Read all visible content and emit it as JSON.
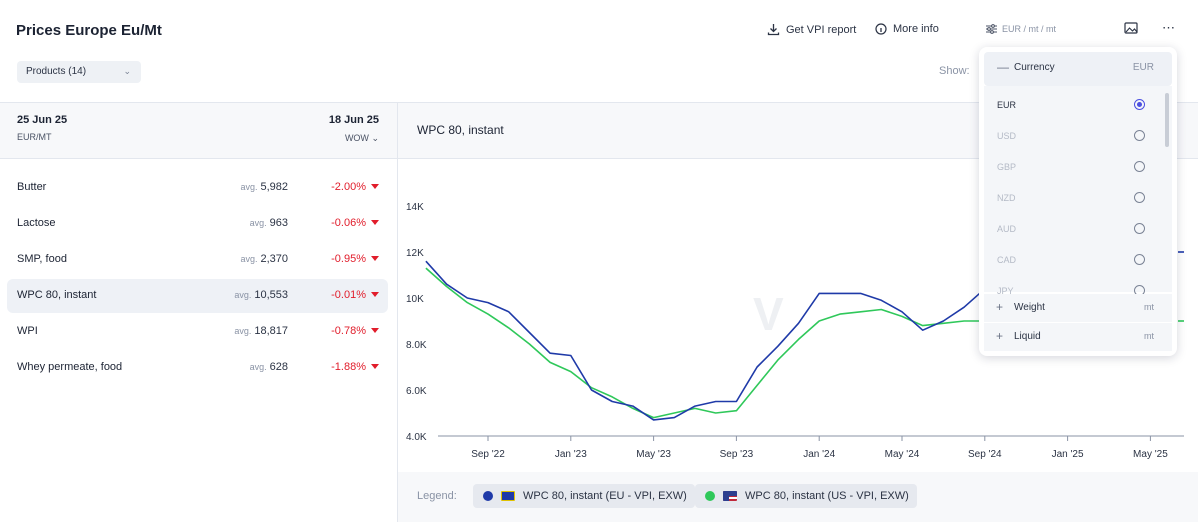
{
  "header": {
    "title": "Prices Europe Eu/Mt",
    "products_label": "Products (14)",
    "get_report_label": "Get VPI report",
    "more_info_label": "More info",
    "currency_selector_label": "EUR / mt / mt",
    "show_label": "Show:"
  },
  "left_panel": {
    "date_current": "25 Jun 25",
    "unit": "EUR/MT",
    "date_compare": "18 Jun 25",
    "period": "WOW",
    "avg_prefix": "avg.",
    "products": [
      {
        "name": "Butter",
        "avg": "5,982",
        "change": "-2.00%"
      },
      {
        "name": "Lactose",
        "avg": "963",
        "change": "-0.06%"
      },
      {
        "name": "SMP, food",
        "avg": "2,370",
        "change": "-0.95%"
      },
      {
        "name": "WPC 80, instant",
        "avg": "10,553",
        "change": "-0.01%",
        "selected": true
      },
      {
        "name": "WPI",
        "avg": "18,817",
        "change": "-0.78%"
      },
      {
        "name": "Whey permeate, food",
        "avg": "628",
        "change": "-1.88%"
      }
    ]
  },
  "chart_panel": {
    "title": "WPC 80, instant",
    "legend_label": "Legend:"
  },
  "dropdown": {
    "currency_label": "Currency",
    "currency_value": "EUR",
    "currencies": [
      {
        "code": "EUR",
        "selected": true
      },
      {
        "code": "USD",
        "selected": false
      },
      {
        "code": "GBP",
        "selected": false
      },
      {
        "code": "NZD",
        "selected": false
      },
      {
        "code": "AUD",
        "selected": false
      },
      {
        "code": "CAD",
        "selected": false
      },
      {
        "code": "JPY",
        "selected": false
      }
    ],
    "weight_label": "Weight",
    "weight_value": "mt",
    "liquid_label": "Liquid",
    "liquid_value": "mt"
  },
  "colors": {
    "eu_series": "#1f3aa8",
    "us_series": "#2fc85a",
    "negative": "#e11d2b",
    "accent": "#4b4fe0"
  },
  "chart_data": {
    "type": "line",
    "title": "WPC 80, instant",
    "x_ticks": [
      "Sep '22",
      "Jan '23",
      "May '23",
      "Sep '23",
      "Jan '24",
      "May '24",
      "Sep '24",
      "Jan '25",
      "May '25"
    ],
    "y_ticks": [
      "4.0K",
      "6.0K",
      "8.0K",
      "10K",
      "12K",
      "14K"
    ],
    "ylim": [
      4000,
      14500
    ],
    "x_range": [
      "2022-06",
      "2025-06"
    ],
    "legend_position": "bottom",
    "series": [
      {
        "name": "WPC 80, instant (EU - VPI, EXW)",
        "color": "#1f3aa8",
        "points": [
          [
            "2022-06",
            11600
          ],
          [
            "2022-07",
            10600
          ],
          [
            "2022-08",
            10000
          ],
          [
            "2022-09",
            9800
          ],
          [
            "2022-10",
            9400
          ],
          [
            "2022-11",
            8500
          ],
          [
            "2022-12",
            7600
          ],
          [
            "2023-01",
            7500
          ],
          [
            "2023-02",
            6000
          ],
          [
            "2023-03",
            5500
          ],
          [
            "2023-04",
            5300
          ],
          [
            "2023-05",
            4700
          ],
          [
            "2023-06",
            4800
          ],
          [
            "2023-07",
            5300
          ],
          [
            "2023-08",
            5500
          ],
          [
            "2023-09",
            5500
          ],
          [
            "2023-10",
            7000
          ],
          [
            "2023-11",
            7900
          ],
          [
            "2023-12",
            8900
          ],
          [
            "2024-01",
            10200
          ],
          [
            "2024-02",
            10200
          ],
          [
            "2024-03",
            10200
          ],
          [
            "2024-04",
            9900
          ],
          [
            "2024-05",
            9400
          ],
          [
            "2024-06",
            8600
          ],
          [
            "2024-07",
            9000
          ],
          [
            "2024-08",
            9600
          ],
          [
            "2024-09",
            10400
          ]
        ]
      },
      {
        "name": "WPC 80, instant (US - VPI, EXW)",
        "color": "#2fc85a",
        "points": [
          [
            "2022-06",
            11300
          ],
          [
            "2022-07",
            10500
          ],
          [
            "2022-08",
            9800
          ],
          [
            "2022-09",
            9300
          ],
          [
            "2022-10",
            8700
          ],
          [
            "2022-11",
            8000
          ],
          [
            "2022-12",
            7200
          ],
          [
            "2023-01",
            6800
          ],
          [
            "2023-02",
            6100
          ],
          [
            "2023-03",
            5700
          ],
          [
            "2023-04",
            5200
          ],
          [
            "2023-05",
            4800
          ],
          [
            "2023-06",
            5000
          ],
          [
            "2023-07",
            5200
          ],
          [
            "2023-08",
            5000
          ],
          [
            "2023-09",
            5100
          ],
          [
            "2023-10",
            6200
          ],
          [
            "2023-11",
            7300
          ],
          [
            "2023-12",
            8200
          ],
          [
            "2024-01",
            9000
          ],
          [
            "2024-02",
            9300
          ],
          [
            "2024-03",
            9400
          ],
          [
            "2024-04",
            9500
          ],
          [
            "2024-05",
            9200
          ],
          [
            "2024-06",
            8800
          ],
          [
            "2024-07",
            8900
          ],
          [
            "2024-08",
            9000
          ],
          [
            "2024-09",
            9000
          ]
        ]
      }
    ]
  }
}
